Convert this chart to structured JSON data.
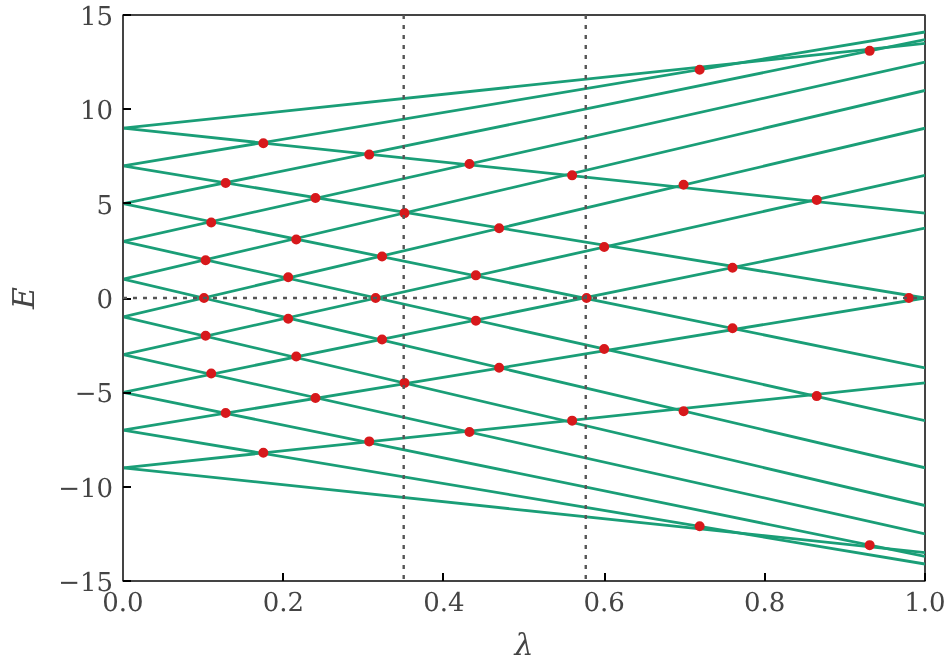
{
  "chart_data": {
    "type": "line",
    "xlabel": "λ",
    "ylabel": "E",
    "xlim": [
      0,
      1
    ],
    "ylim": [
      -15,
      15
    ],
    "xticks": [
      {
        "value": 0,
        "label": "0.0"
      },
      {
        "value": 0.2,
        "label": "0.2"
      },
      {
        "value": 0.4,
        "label": "0.4"
      },
      {
        "value": 0.6,
        "label": "0.6"
      },
      {
        "value": 0.8,
        "label": "0.8"
      },
      {
        "value": 1,
        "label": "1.0"
      }
    ],
    "yticks": [
      {
        "value": -15,
        "label": "−15"
      },
      {
        "value": -10,
        "label": "−10"
      },
      {
        "value": -5,
        "label": "−5"
      },
      0,
      5,
      10,
      15
    ],
    "grid": false,
    "marker": "none",
    "line_style": "solid",
    "ref_lines": [
      {
        "axis": "x",
        "value": 0.35,
        "color": "#555555",
        "line_style": "dotted"
      },
      {
        "axis": "x",
        "value": 0.577,
        "color": "#555555",
        "line_style": "dotted"
      },
      {
        "axis": "y",
        "value": 0,
        "color": "#555555",
        "line_style": "dotted"
      }
    ],
    "series": [
      {
        "color": "#1a9e77",
        "x": [
          0,
          1
        ],
        "values": [
          1,
          11
        ]
      },
      {
        "color": "#1a9e77",
        "x": [
          0,
          1
        ],
        "values": [
          1,
          -9
        ]
      },
      {
        "color": "#1a9e77",
        "x": [
          0,
          1
        ],
        "values": [
          3,
          12.5
        ]
      },
      {
        "color": "#1a9e77",
        "x": [
          0,
          1
        ],
        "values": [
          3,
          -6.5
        ]
      },
      {
        "color": "#1a9e77",
        "x": [
          0,
          1
        ],
        "values": [
          5,
          13.7
        ]
      },
      {
        "color": "#1a9e77",
        "x": [
          0,
          1
        ],
        "values": [
          5,
          -3.7
        ]
      },
      {
        "color": "#1a9e77",
        "x": [
          0,
          1
        ],
        "values": [
          7,
          14.1
        ]
      },
      {
        "color": "#1a9e77",
        "x": [
          0,
          1
        ],
        "values": [
          7,
          0
        ]
      },
      {
        "color": "#1a9e77",
        "x": [
          0,
          1
        ],
        "values": [
          9,
          13.5
        ]
      },
      {
        "color": "#1a9e77",
        "x": [
          0,
          1
        ],
        "values": [
          9,
          4.5
        ]
      },
      {
        "color": "#1a9e77",
        "x": [
          0,
          1
        ],
        "values": [
          -1,
          -11
        ]
      },
      {
        "color": "#1a9e77",
        "x": [
          0,
          1
        ],
        "values": [
          -1,
          9
        ]
      },
      {
        "color": "#1a9e77",
        "x": [
          0,
          1
        ],
        "values": [
          -3,
          -12.5
        ]
      },
      {
        "color": "#1a9e77",
        "x": [
          0,
          1
        ],
        "values": [
          -3,
          6.5
        ]
      },
      {
        "color": "#1a9e77",
        "x": [
          0,
          1
        ],
        "values": [
          -5,
          -13.7
        ]
      },
      {
        "color": "#1a9e77",
        "x": [
          0,
          1
        ],
        "values": [
          -5,
          3.7
        ]
      },
      {
        "color": "#1a9e77",
        "x": [
          0,
          1
        ],
        "values": [
          -7,
          -14.1
        ]
      },
      {
        "color": "#1a9e77",
        "x": [
          0,
          1
        ],
        "values": [
          -7,
          0
        ]
      },
      {
        "color": "#1a9e77",
        "x": [
          0,
          1
        ],
        "values": [
          -9,
          -13.5
        ]
      },
      {
        "color": "#1a9e77",
        "x": [
          0,
          1
        ],
        "values": [
          -9,
          -4.5
        ]
      },
      {
        "type": "scatter",
        "marker": "circle",
        "color": "#d7191c",
        "x": [
          0.101,
          0.315,
          0.578,
          0.98,
          0.206,
          0.103,
          0.323,
          0.216,
          0.11,
          0.351,
          0.24,
          0.128,
          0.307,
          0.175,
          0.432,
          0.56,
          0.699,
          0.865,
          0.719,
          0.931,
          0.469,
          0.6,
          0.76,
          0.44,
          0.206,
          0.103,
          0.323,
          0.216,
          0.11,
          0.351,
          0.24,
          0.128,
          0.307,
          0.175,
          0.432,
          0.56,
          0.699,
          0.865,
          0.719,
          0.931,
          0.469,
          0.6,
          0.76,
          0.44
        ],
        "values": [
          0,
          0,
          0,
          0,
          1.1,
          2.0,
          2.2,
          3.1,
          4.0,
          4.5,
          5.3,
          6.1,
          7.6,
          8.2,
          7.1,
          6.5,
          6.0,
          5.2,
          12.1,
          13.1,
          3.7,
          2.7,
          1.6,
          1.2,
          -1.1,
          -2.0,
          -2.2,
          -3.1,
          -4.0,
          -4.5,
          -5.3,
          -6.1,
          -7.6,
          -8.2,
          -7.1,
          -6.5,
          -6.0,
          -5.2,
          -12.1,
          -13.1,
          -3.7,
          -2.7,
          -1.6,
          -1.2
        ]
      }
    ]
  }
}
